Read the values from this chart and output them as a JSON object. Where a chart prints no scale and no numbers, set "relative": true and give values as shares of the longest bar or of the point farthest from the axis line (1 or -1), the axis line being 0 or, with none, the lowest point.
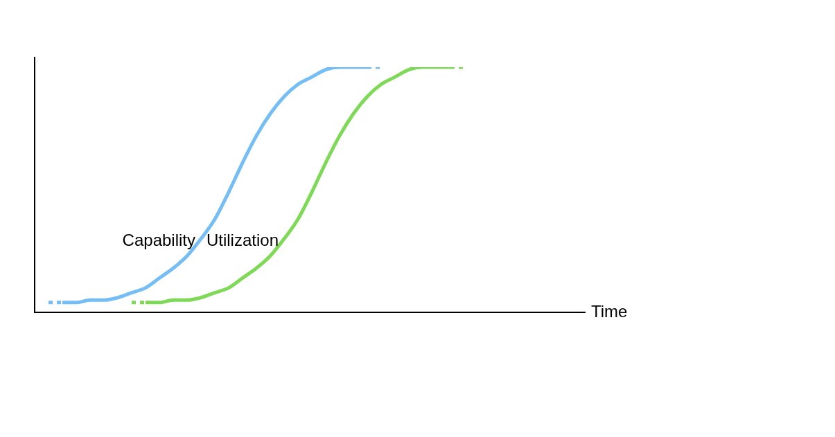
{
  "chart_data": {
    "type": "line",
    "relative": true,
    "xlabel": "Time",
    "legend": false,
    "categories": [
      null,
      null,
      null,
      null,
      null,
      null,
      null,
      null,
      null,
      null,
      null,
      null,
      null,
      null,
      null,
      null,
      null,
      null,
      null,
      null,
      null,
      null,
      null,
      null,
      null,
      null,
      null,
      null,
      null,
      null,
      null,
      null,
      null,
      null,
      null,
      null,
      null,
      null,
      null,
      null,
      null
    ],
    "series": [
      {
        "name": "Capability",
        "color": "#74bdf5",
        "line_style": "solid",
        "values": [
          null,
          null,
          0.04,
          0.04,
          0.05,
          0.05,
          0.06,
          0.08,
          0.1,
          0.14,
          0.18,
          0.23,
          0.3,
          0.38,
          0.49,
          0.61,
          0.72,
          0.81,
          0.88,
          0.93,
          0.96,
          0.99,
          1,
          1,
          1,
          null,
          null,
          null,
          null,
          null,
          null,
          null,
          null,
          null,
          null,
          null,
          null,
          null,
          null,
          null,
          null
        ]
      },
      {
        "color": "#74bdf5",
        "line_style": "dotted",
        "values": [
          null,
          0.04,
          0.04,
          null,
          null,
          null,
          null,
          null,
          null,
          null,
          null,
          null,
          null,
          null,
          null,
          null,
          null,
          null,
          null,
          null,
          null,
          null,
          null,
          null,
          1,
          1,
          null,
          null,
          null,
          null,
          null,
          null,
          null,
          null,
          null,
          null,
          null,
          null,
          null,
          null,
          null
        ]
      },
      {
        "name": "Utilization",
        "color": "#7ed957",
        "line_style": "solid",
        "values": [
          null,
          null,
          null,
          null,
          null,
          null,
          null,
          null,
          0.04,
          0.04,
          0.05,
          0.05,
          0.06,
          0.08,
          0.1,
          0.14,
          0.18,
          0.23,
          0.3,
          0.38,
          0.49,
          0.61,
          0.72,
          0.81,
          0.88,
          0.93,
          0.96,
          0.99,
          1,
          1,
          1,
          null,
          null,
          null,
          null,
          null,
          null,
          null,
          null,
          null,
          null
        ]
      },
      {
        "color": "#7ed957",
        "line_style": "dotted",
        "values": [
          null,
          null,
          null,
          null,
          null,
          null,
          null,
          0.04,
          0.04,
          null,
          null,
          null,
          null,
          null,
          null,
          null,
          null,
          null,
          null,
          null,
          null,
          null,
          null,
          null,
          null,
          null,
          null,
          null,
          null,
          null,
          1,
          1,
          null,
          null,
          null,
          null,
          null,
          null,
          null,
          null,
          null
        ]
      }
    ]
  }
}
